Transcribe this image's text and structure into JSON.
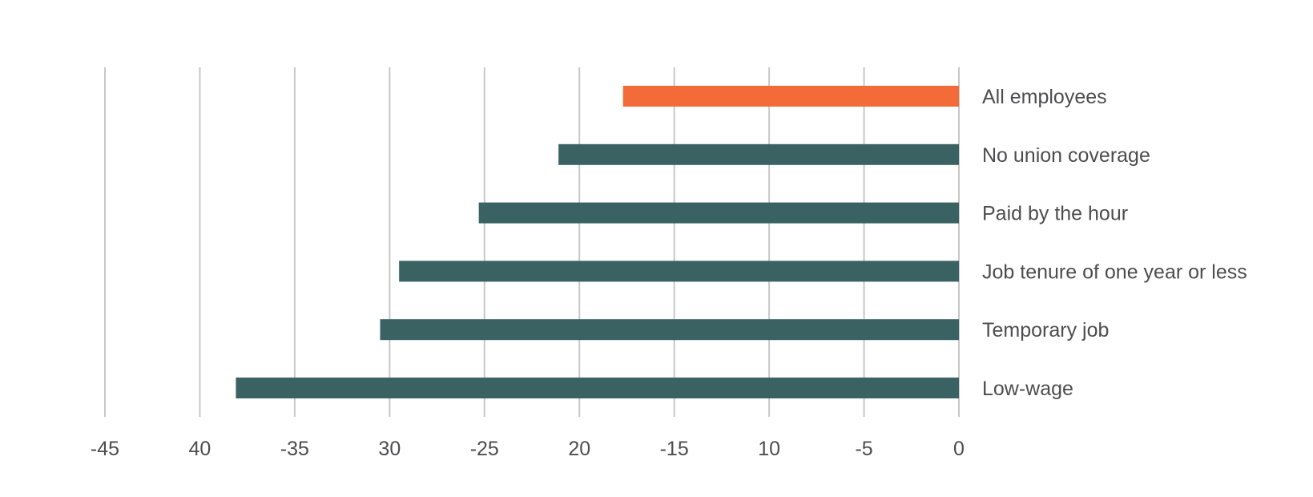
{
  "chart_data": {
    "type": "bar",
    "orientation": "horizontal",
    "title": "",
    "xlabel": "",
    "ylabel": "",
    "categories": [
      "All employees",
      "No union coverage",
      "Paid by the hour",
      "Job tenure of one year or less",
      "Temporary job",
      "Low-wage"
    ],
    "values": [
      -17.7,
      -21.1,
      -25.3,
      -29.5,
      -30.5,
      -38.1
    ],
    "highlight_category": "All employees",
    "colors": {
      "highlight": "#f26b38",
      "default": "#3a6262",
      "gridline": "#c8c8c8",
      "text": "#4d4d4f"
    },
    "xlim": [
      -45,
      0
    ],
    "x_ticks": [
      -45,
      -40,
      -35,
      -30,
      -25,
      -20,
      -15,
      -10,
      -5,
      0
    ],
    "x_tick_labels": [
      "-45",
      "40",
      "-35",
      "30",
      "-25",
      "20",
      "-15",
      "10",
      "-5",
      "0"
    ],
    "grid": true,
    "category_label_position": "right"
  }
}
